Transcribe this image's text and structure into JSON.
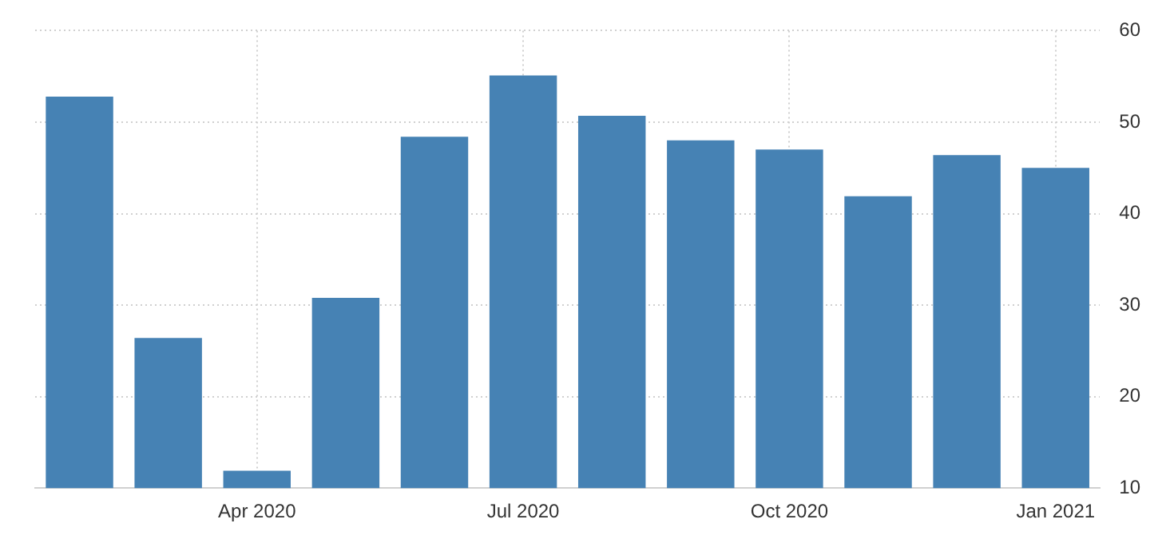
{
  "chart_data": {
    "type": "bar",
    "categories": [
      null,
      null,
      "Apr 2020",
      null,
      null,
      "Jul 2020",
      null,
      null,
      "Oct 2020",
      null,
      null,
      "Jan 2021"
    ],
    "values": [
      52.8,
      26.4,
      11.9,
      30.8,
      48.4,
      55.1,
      50.7,
      48.0,
      47.0,
      41.9,
      46.4,
      45.0
    ],
    "color": "#4682b4",
    "ylim": [
      10,
      60
    ],
    "yticks": [
      10,
      20,
      30,
      40,
      50,
      60
    ],
    "grid": true
  }
}
